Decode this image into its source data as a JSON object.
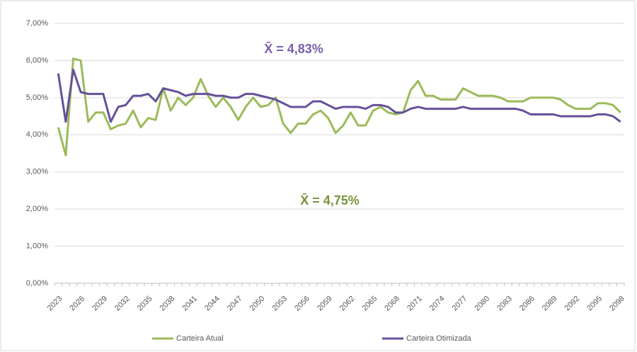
{
  "chart_data": {
    "type": "line",
    "categories": [
      "2023",
      null,
      null,
      "2026",
      null,
      null,
      "2029",
      null,
      null,
      "2032",
      null,
      null,
      "2035",
      null,
      null,
      "2038",
      null,
      null,
      "2041",
      null,
      null,
      "2044",
      null,
      null,
      "2047",
      null,
      null,
      "2050",
      null,
      null,
      "2053",
      null,
      null,
      "2056",
      null,
      null,
      "2059",
      null,
      null,
      "2062",
      null,
      null,
      "2065",
      null,
      null,
      "2068",
      null,
      null,
      "2071",
      null,
      null,
      "2074",
      null,
      null,
      "2077",
      null,
      null,
      "2080",
      null,
      null,
      "2083",
      null,
      null,
      "2086",
      null,
      null,
      "2089",
      null,
      null,
      "2092",
      null,
      null,
      "2095",
      null,
      null,
      "2098"
    ],
    "series": [
      {
        "name": "Carteira Atual",
        "color": "#9bbb59",
        "values": [
          4.2,
          3.45,
          6.05,
          6.0,
          4.35,
          4.6,
          4.6,
          4.15,
          4.25,
          4.3,
          4.65,
          4.2,
          4.45,
          4.4,
          5.25,
          4.65,
          5.0,
          4.8,
          5.0,
          5.5,
          5.05,
          4.75,
          5.0,
          4.75,
          4.4,
          4.75,
          5.0,
          4.75,
          4.8,
          5.0,
          4.3,
          4.05,
          4.3,
          4.3,
          4.55,
          4.65,
          4.45,
          4.05,
          4.25,
          4.6,
          4.25,
          4.25,
          4.65,
          4.75,
          4.6,
          4.55,
          4.6,
          5.2,
          5.45,
          5.05,
          5.05,
          4.95,
          4.95,
          4.95,
          5.25,
          5.15,
          5.05,
          5.05,
          5.05,
          5.0,
          4.9,
          4.9,
          4.9,
          5.0,
          5.0,
          5.0,
          5.0,
          4.95,
          4.8,
          4.7,
          4.7,
          4.7,
          4.85,
          4.85,
          4.8,
          4.6
        ]
      },
      {
        "name": "Carteira Otimizada",
        "color": "#66509a",
        "values": [
          5.65,
          4.35,
          5.75,
          5.15,
          5.1,
          5.1,
          5.1,
          4.35,
          4.75,
          4.8,
          5.05,
          5.05,
          5.1,
          4.9,
          5.25,
          5.2,
          5.15,
          5.05,
          5.1,
          5.1,
          5.1,
          5.05,
          5.05,
          5.0,
          5.0,
          5.1,
          5.1,
          5.05,
          5.0,
          4.95,
          4.85,
          4.75,
          4.75,
          4.75,
          4.9,
          4.9,
          4.8,
          4.7,
          4.75,
          4.75,
          4.75,
          4.7,
          4.8,
          4.8,
          4.75,
          4.6,
          4.6,
          4.7,
          4.75,
          4.7,
          4.7,
          4.7,
          4.7,
          4.7,
          4.75,
          4.7,
          4.7,
          4.7,
          4.7,
          4.7,
          4.7,
          4.7,
          4.65,
          4.55,
          4.55,
          4.55,
          4.55,
          4.5,
          4.5,
          4.5,
          4.5,
          4.5,
          4.55,
          4.55,
          4.5,
          4.35
        ]
      }
    ],
    "ylim": [
      0,
      7
    ],
    "yticks": [
      {
        "value": 0,
        "label": "0,00%"
      },
      {
        "value": 1,
        "label": "1,00%"
      },
      {
        "value": 2,
        "label": "2,00%"
      },
      {
        "value": 3,
        "label": "3,00%"
      },
      {
        "value": 4,
        "label": "4,00%"
      },
      {
        "value": 5,
        "label": "5,00%"
      },
      {
        "value": 6,
        "label": "6,00%"
      },
      {
        "value": 7,
        "label": "7,00%"
      }
    ],
    "grid": true,
    "legend": "bottom",
    "annotations": [
      "X̄ = 4,83%",
      "X̄ = 4,75%"
    ]
  }
}
